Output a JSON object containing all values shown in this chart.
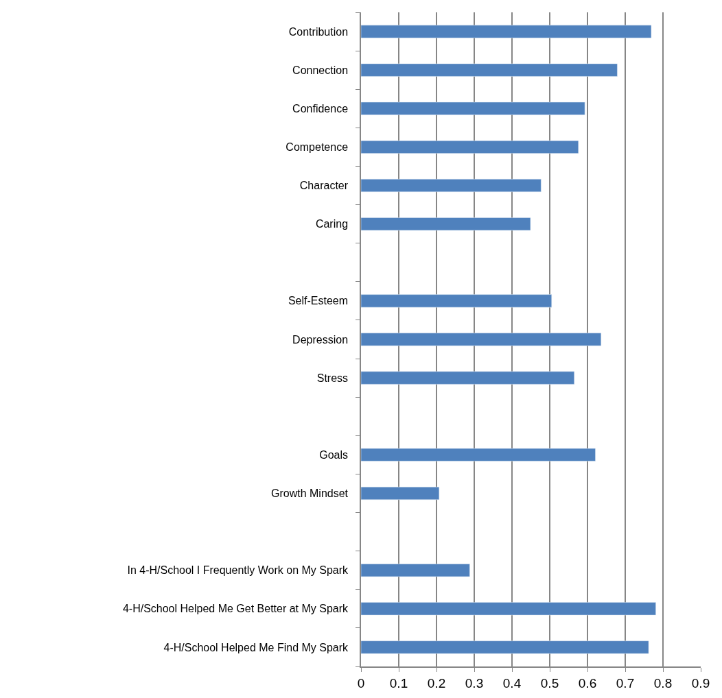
{
  "chart_data": {
    "type": "bar",
    "orientation": "horizontal",
    "categories": [
      "Contribution",
      "Connection",
      "Confidence",
      "Competence",
      "Character",
      "Caring",
      null,
      "Self-Esteem",
      "Depression",
      "Stress",
      null,
      "Goals",
      "Growth Mindset",
      null,
      "In 4-H/School I Frequently Work on My Spark",
      "4-H/School Helped Me Get Better at My Spark",
      "4-H/School Helped Me Find My Spark"
    ],
    "values": [
      0.769,
      0.679,
      0.593,
      0.576,
      0.477,
      0.449,
      null,
      0.505,
      0.636,
      0.565,
      null,
      0.621,
      0.207,
      null,
      0.288,
      0.781,
      0.762
    ],
    "color": "#4f81bd",
    "xlim": [
      0,
      0.9
    ],
    "xticks": [
      0,
      0.1,
      0.2,
      0.3,
      0.4,
      0.5,
      0.6,
      0.7,
      0.8,
      0.9
    ],
    "grid": "x"
  }
}
